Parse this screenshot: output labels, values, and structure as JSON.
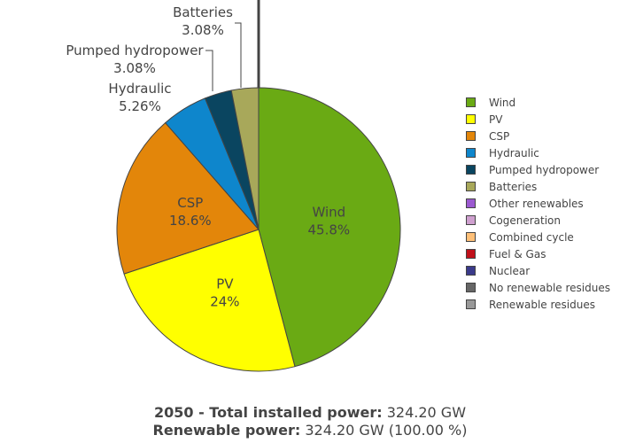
{
  "chart_data": {
    "type": "pie",
    "slices": [
      {
        "label": "Wind",
        "value": 45.8,
        "color": "#6aaa14"
      },
      {
        "label": "PV",
        "value": 24.0,
        "color": "#ffff00"
      },
      {
        "label": "CSP",
        "value": 18.6,
        "color": "#e3860a"
      },
      {
        "label": "Hydraulic",
        "value": 5.26,
        "color": "#0e86cc"
      },
      {
        "label": "Pumped hydropower",
        "value": 3.08,
        "color": "#0a4560"
      },
      {
        "label": "Batteries",
        "value": 3.08,
        "color": "#a8a85a"
      },
      {
        "label": "Other renewables",
        "value": 0,
        "color": "#9b59d0"
      },
      {
        "label": "Cogeneration",
        "value": 0,
        "color": "#cfa0cf"
      },
      {
        "label": "Combined cycle",
        "value": 0,
        "color": "#ffc078"
      },
      {
        "label": "Fuel & Gas",
        "value": 0,
        "color": "#c0101a"
      },
      {
        "label": "Nuclear",
        "value": 0,
        "color": "#3a3a8a"
      },
      {
        "label": "No renewable residues",
        "value": 0,
        "color": "#666666"
      },
      {
        "label": "Renewable residues",
        "value": 0,
        "color": "#999999"
      }
    ],
    "slice_texts": {
      "Wind": [
        "Wind",
        "45.8%"
      ],
      "PV": [
        "PV",
        "24%"
      ],
      "CSP": [
        "CSP",
        "18.6%"
      ],
      "Hydraulic": [
        "Hydraulic",
        "5.26%"
      ],
      "Pumped hydropower": [
        "Pumped hydropower",
        "3.08%"
      ],
      "Batteries": [
        "Batteries",
        "3.08%"
      ]
    },
    "legend_placement": "right"
  },
  "caption": {
    "line1_label": "2050 - Total installed power:",
    "line1_value": " 324.20 GW",
    "line2_label": "Renewable power:",
    "line2_value": " 324.20 GW (100.00 %)"
  }
}
